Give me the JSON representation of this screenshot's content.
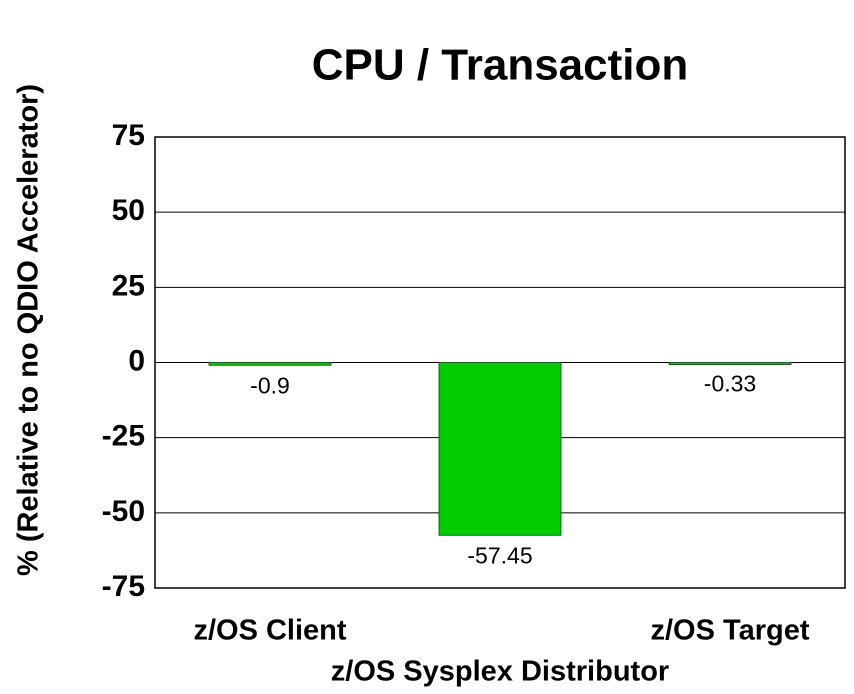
{
  "chart_data": {
    "type": "bar",
    "title": "CPU / Transaction",
    "y_label": "% (Relative to no QDIO Accelerator)",
    "categories": [
      "z/OS Client",
      "z/OS Sysplex Distributor",
      "z/OS Target"
    ],
    "values": [
      -0.9,
      -57.45,
      -0.33
    ],
    "color": "#00cc00",
    "ylim": [
      -75,
      75
    ],
    "yticks": [
      -75,
      -50,
      -25,
      0,
      25,
      50,
      75
    ],
    "grid": true
  }
}
